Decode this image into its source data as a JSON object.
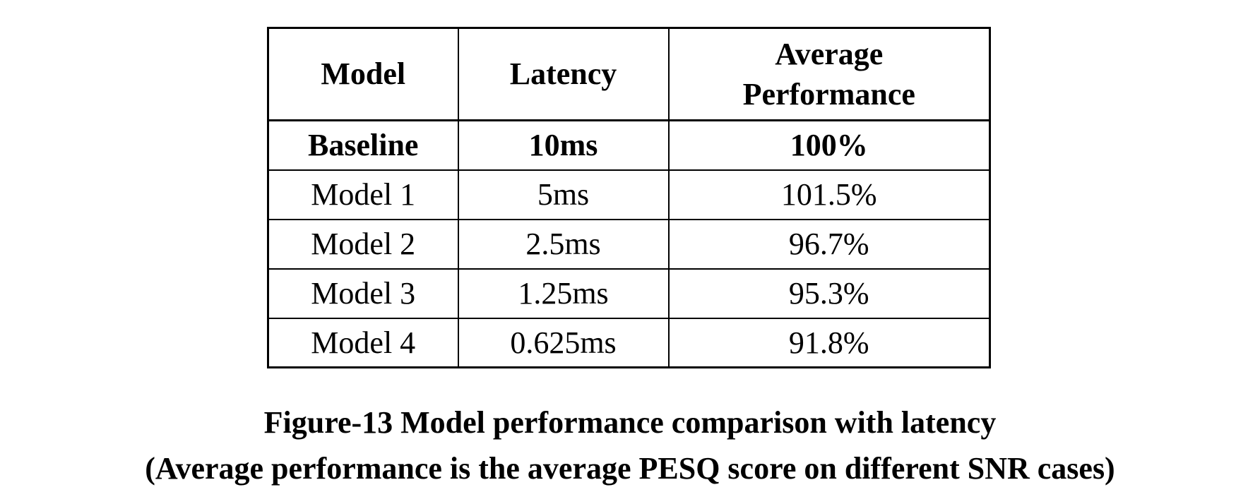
{
  "table": {
    "headers": [
      {
        "label": "Model"
      },
      {
        "label": "Latency"
      },
      {
        "label": "Average Performance"
      }
    ],
    "rows": [
      {
        "model": "Baseline",
        "latency": "10ms",
        "performance": "100%",
        "emphasis": "bold"
      },
      {
        "model": "Model 1",
        "latency": "5ms",
        "performance": "101.5%",
        "emphasis": "normal"
      },
      {
        "model": "Model 2",
        "latency": "2.5ms",
        "performance": "96.7%",
        "emphasis": "normal"
      },
      {
        "model": "Model 3",
        "latency": "1.25ms",
        "performance": "95.3%",
        "emphasis": "normal"
      },
      {
        "model": "Model 4",
        "latency": "0.625ms",
        "performance": "91.8%",
        "emphasis": "normal"
      }
    ]
  },
  "caption": {
    "title": "Figure-13 Model performance comparison with latency",
    "subtitle": "(Average performance is the average PESQ score on different SNR cases)"
  },
  "colors": {
    "text": "#000000",
    "border": "#000000",
    "background": "#ffffff"
  }
}
